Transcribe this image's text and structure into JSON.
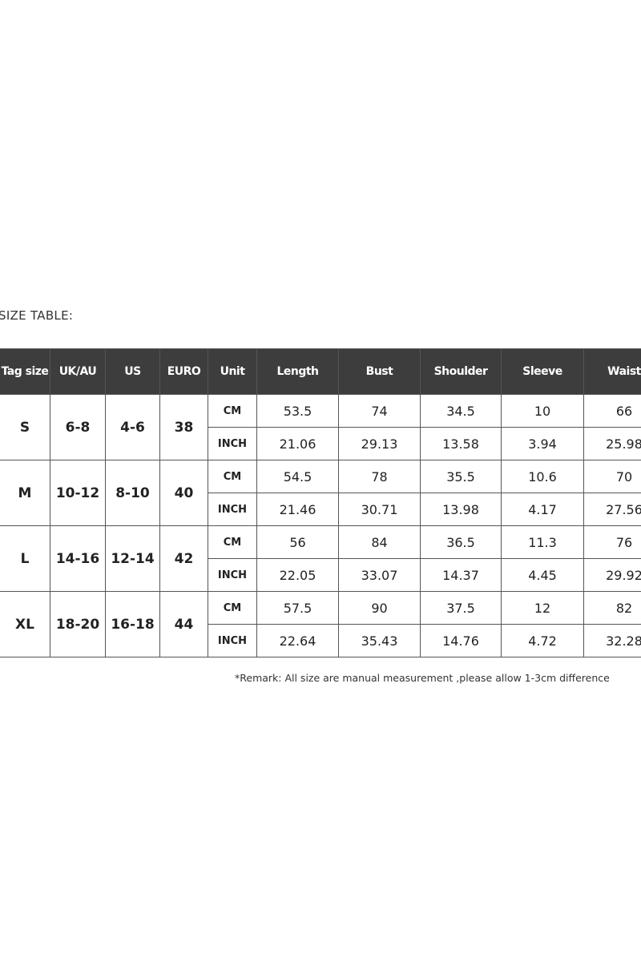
{
  "title": "SIZE TABLE:",
  "headers": [
    "Tag size",
    "UK/AU",
    "US",
    "EURO",
    "Unit",
    "Length",
    "Bust",
    "Shoulder",
    "Sleeve",
    "Waist"
  ],
  "rows": [
    {
      "tag": "S",
      "uk": "6-8",
      "us": "4-6",
      "euro": "38",
      "cm": [
        "CM",
        "53.5",
        "74",
        "34.5",
        "10",
        "66"
      ],
      "inch": [
        "INCH",
        "21.06",
        "29.13",
        "13.58",
        "3.94",
        "25.98"
      ]
    },
    {
      "tag": "M",
      "uk": "10-12",
      "us": "8-10",
      "euro": "40",
      "cm": [
        "CM",
        "54.5",
        "78",
        "35.5",
        "10.6",
        "70"
      ],
      "inch": [
        "INCH",
        "21.46",
        "30.71",
        "13.98",
        "4.17",
        "27.56"
      ]
    },
    {
      "tag": "L",
      "uk": "14-16",
      "us": "12-14",
      "euro": "42",
      "cm": [
        "CM",
        "56",
        "84",
        "36.5",
        "11.3",
        "76"
      ],
      "inch": [
        "INCH",
        "22.05",
        "33.07",
        "14.37",
        "4.45",
        "29.92"
      ]
    },
    {
      "tag": "XL",
      "uk": "18-20",
      "us": "16-18",
      "euro": "44",
      "cm": [
        "CM",
        "57.5",
        "90",
        "37.5",
        "12",
        "82"
      ],
      "inch": [
        "INCH",
        "22.64",
        "35.43",
        "14.76",
        "4.72",
        "32.28"
      ]
    }
  ],
  "remark": "*Remark: All size are manual measurement ,please allow 1-3cm difference",
  "colors": {
    "header_bg": "#3d3d3d",
    "header_text": "#ffffff",
    "border": "#555555"
  }
}
